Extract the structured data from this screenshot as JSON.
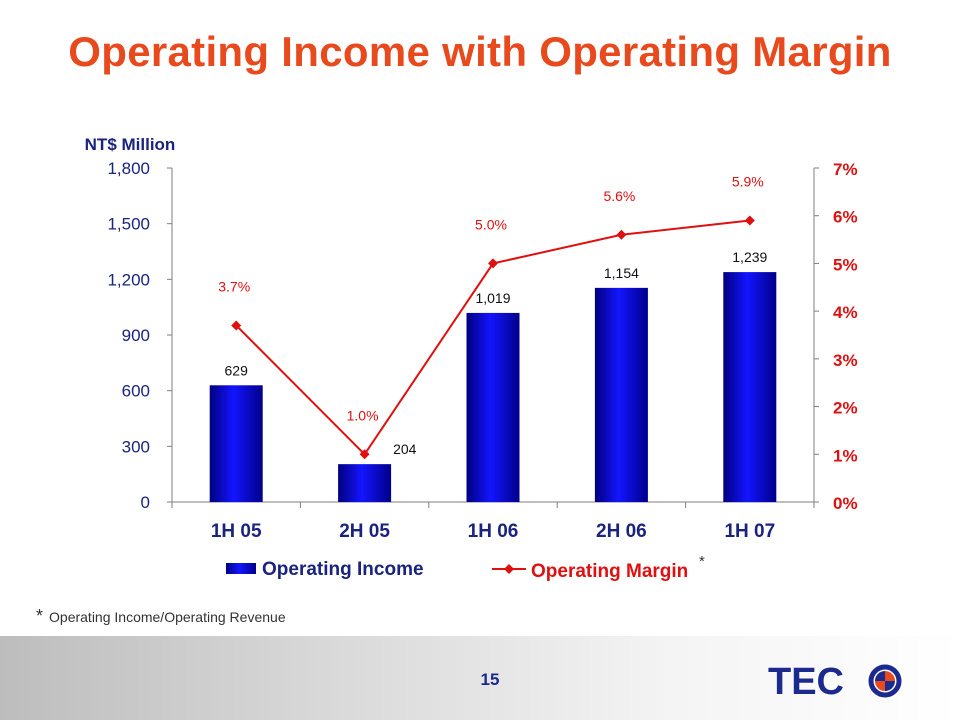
{
  "slide": {
    "title": "Operating Income with Operating Margin",
    "footnote_marker": "*",
    "footnote_text": "Operating Income/Operating Revenue",
    "page_number": "15",
    "logo_text": "TECO",
    "colors": {
      "title": "#e8491d",
      "bar": "#0a0adc",
      "line": "#e01010",
      "left_axis_text": "#1a237e",
      "right_axis_text": "#e01010"
    }
  },
  "chart_data": {
    "type": "bar",
    "categories": [
      "1H 05",
      "2H 05",
      "1H 06",
      "2H 06",
      "1H 07"
    ],
    "ylabel": "NT$ Million",
    "ylim": [
      0,
      1800
    ],
    "yticks": [
      "0",
      "300",
      "600",
      "900",
      "1,200",
      "1,500",
      "1,800"
    ],
    "y2lim": [
      0,
      7
    ],
    "y2ticks": [
      "0%",
      "1%",
      "2%",
      "3%",
      "4%",
      "5%",
      "6%",
      "7%"
    ],
    "grid": false,
    "legend_position": "bottom",
    "series": [
      {
        "name": "Operating Income",
        "type": "bar",
        "axis": "left",
        "values": [
          629,
          204,
          1019,
          1154,
          1239
        ],
        "labels": [
          "629",
          "204",
          "1,019",
          "1,154",
          "1,239"
        ]
      },
      {
        "name": "Operating Margin",
        "legend_marker": "*",
        "type": "line",
        "axis": "right",
        "values": [
          3.7,
          1.0,
          5.0,
          5.6,
          5.9
        ],
        "labels": [
          "3.7%",
          "1.0%",
          "5.0%",
          "5.6%",
          "5.9%"
        ]
      }
    ]
  }
}
